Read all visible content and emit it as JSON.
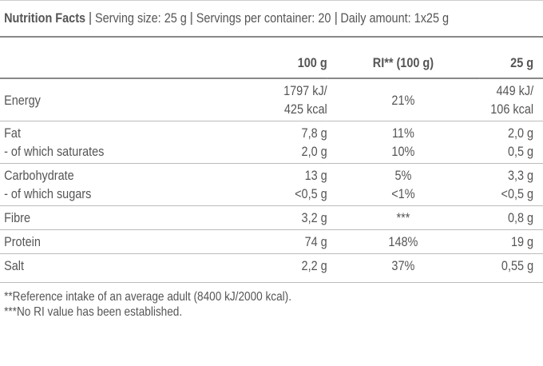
{
  "header": {
    "title": "Nutrition Facts",
    "details": [
      "Serving size: 25 g",
      "Servings per container: 20",
      "Daily amount: 1x25 g"
    ]
  },
  "table": {
    "columns": [
      "100 g",
      "RI** (100 g)",
      "25 g"
    ],
    "rows": [
      [
        [
          "Energy"
        ],
        [
          "1797 kJ/",
          "425 kcal"
        ],
        [
          "21%"
        ],
        [
          "449 kJ/",
          "106 kcal"
        ]
      ],
      [
        [
          "Fat",
          "- of which saturates"
        ],
        [
          "7,8 g",
          "2,0 g"
        ],
        [
          "11%",
          "10%"
        ],
        [
          "2,0 g",
          "0,5 g"
        ]
      ],
      [
        [
          "Carbohydrate",
          "- of which sugars"
        ],
        [
          "13 g",
          "<0,5 g"
        ],
        [
          "5%",
          "<1%"
        ],
        [
          "3,3 g",
          "<0,5 g"
        ]
      ],
      [
        [
          "Fibre"
        ],
        [
          "3,2 g"
        ],
        [
          "***"
        ],
        [
          "0,8 g"
        ]
      ],
      [
        [
          "Protein"
        ],
        [
          "74 g"
        ],
        [
          "148%"
        ],
        [
          "19 g"
        ]
      ],
      [
        [
          "Salt"
        ],
        [
          "2,2 g"
        ],
        [
          "37%"
        ],
        [
          "0,55 g"
        ]
      ]
    ]
  },
  "footnotes": [
    "**Reference intake of an average adult (8400 kJ/2000 kcal).",
    "***No RI value has been established."
  ]
}
